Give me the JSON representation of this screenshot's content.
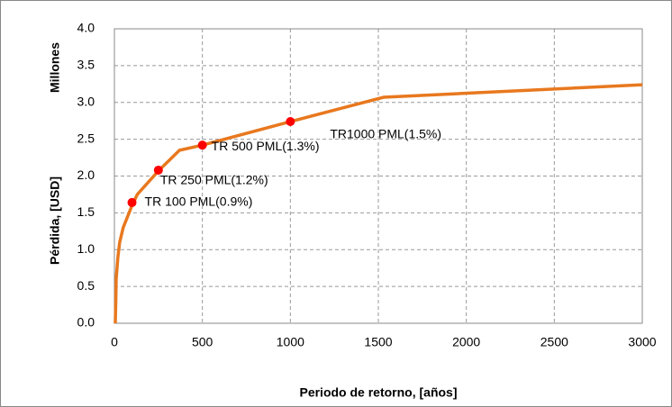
{
  "chart_data": {
    "type": "line",
    "ylabel": "Pérdida, [USD]",
    "yunit": "Millones",
    "xlabel": "Periodo de retorno, [años]",
    "xlim": [
      0,
      3000
    ],
    "xticks": [
      0,
      500,
      1000,
      1500,
      2000,
      2500,
      3000
    ],
    "ylim": [
      0,
      4
    ],
    "yticks": [
      {
        "value": 0,
        "label": "0.0"
      },
      0.5,
      {
        "value": 1,
        "label": "1.0"
      },
      1.5,
      {
        "value": 2,
        "label": "2.0"
      },
      2.5,
      {
        "value": 3,
        "label": "3.0"
      },
      3.5,
      {
        "value": 4,
        "label": "4.0"
      }
    ],
    "grid": true,
    "series": [
      {
        "color": "#e8781e",
        "x": [
          5,
          8,
          10,
          20,
          30,
          50,
          100,
          130,
          250,
          370,
          500,
          1000,
          1530,
          3000
        ],
        "values": [
          0,
          0.3,
          0.6,
          0.9,
          1.1,
          1.3,
          1.6,
          1.75,
          2.07,
          2.35,
          2.42,
          2.74,
          3.07,
          3.24
        ]
      },
      {
        "color": "#ff0000",
        "marker": true,
        "x": [
          100,
          250,
          500,
          1000
        ],
        "values": [
          1.64,
          2.08,
          2.42,
          2.74
        ],
        "labels": [
          "TR 100 PML(0.9%)",
          "TR 250 PML(1.2%)",
          "TR 500 PML(1.3%)",
          "TR1000 PML(1.5%)"
        ]
      }
    ]
  }
}
